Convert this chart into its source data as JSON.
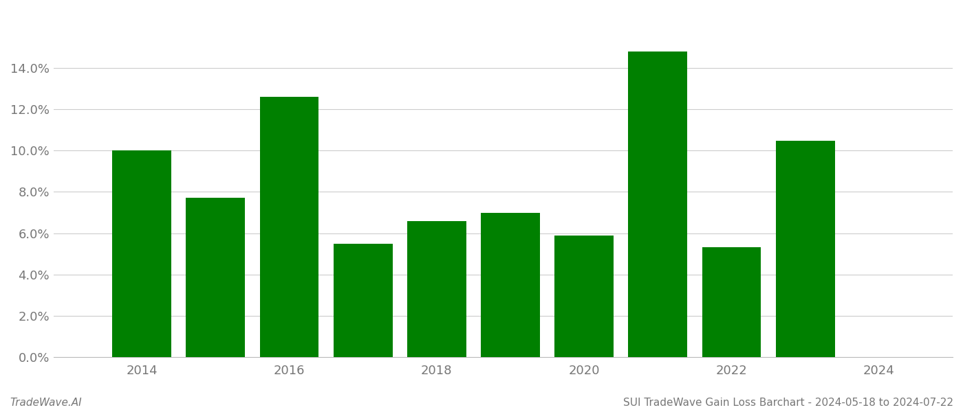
{
  "years": [
    2014,
    2015,
    2016,
    2017,
    2018,
    2019,
    2020,
    2021,
    2022,
    2023
  ],
  "values": [
    0.1002,
    0.0772,
    0.126,
    0.0548,
    0.0658,
    0.07,
    0.059,
    0.148,
    0.0532,
    0.1048
  ],
  "bar_color": "#008000",
  "background_color": "#ffffff",
  "grid_color": "#cccccc",
  "title": "SUI TradeWave Gain Loss Barchart - 2024-05-18 to 2024-07-22",
  "watermark": "TradeWave.AI",
  "ylim": [
    0,
    0.168
  ],
  "yticks": [
    0.0,
    0.02,
    0.04,
    0.06,
    0.08,
    0.1,
    0.12,
    0.14
  ],
  "xticks": [
    2014,
    2016,
    2018,
    2020,
    2022,
    2024
  ],
  "xlim": [
    2012.8,
    2025.0
  ],
  "title_fontsize": 11,
  "watermark_fontsize": 11,
  "axis_label_color": "#777777",
  "tick_label_fontsize": 13,
  "bar_width": 0.8
}
